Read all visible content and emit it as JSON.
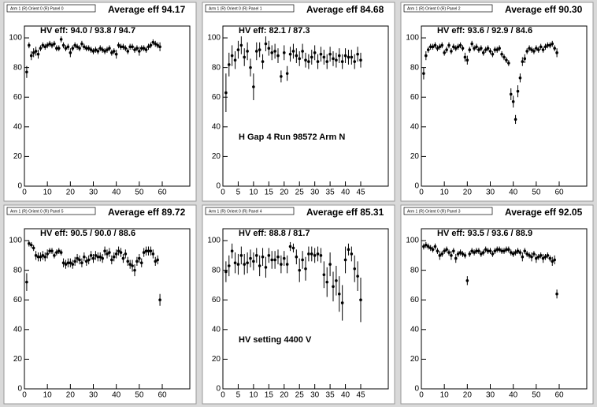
{
  "chart_data": [
    {
      "type": "scatter",
      "label": "Arm 1 (R) Orient 0 (R) Panel 0",
      "title": "Average eff 94.17",
      "hv_text": "HV eff:   94.0 / 93.8 / 94.7",
      "x": [
        1,
        2,
        3,
        4,
        5,
        6,
        7,
        8,
        9,
        10,
        11,
        12,
        13,
        14,
        15,
        16,
        17,
        18,
        19,
        20,
        21,
        22,
        23,
        24,
        25,
        26,
        27,
        28,
        29,
        30,
        31,
        32,
        33,
        34,
        35,
        36,
        37,
        38,
        39,
        40,
        41,
        42,
        43,
        44,
        45,
        46,
        47,
        48,
        49,
        50,
        51,
        52,
        53,
        54,
        55,
        56,
        57,
        58,
        59
      ],
      "values": [
        77,
        95,
        88,
        90,
        91,
        89,
        93,
        95,
        94,
        95,
        96,
        95,
        96,
        93,
        93,
        99,
        95,
        93,
        94,
        90,
        93,
        95,
        94,
        93,
        96,
        94,
        93,
        93,
        92,
        91,
        92,
        91,
        93,
        92,
        91,
        92,
        93,
        90,
        91,
        89,
        95,
        94,
        94,
        93,
        91,
        94,
        94,
        92,
        93,
        91,
        93,
        93,
        92,
        94,
        95,
        97,
        96,
        95,
        94
      ],
      "errors": [
        4,
        2,
        3,
        3,
        3,
        3,
        2,
        2,
        2,
        2,
        2,
        2,
        2,
        2,
        2,
        2,
        2,
        2,
        2,
        3,
        2,
        2,
        2,
        2,
        2,
        2,
        2,
        2,
        2,
        2,
        2,
        2,
        2,
        2,
        2,
        2,
        2,
        2,
        2,
        3,
        2,
        2,
        2,
        2,
        2,
        2,
        2,
        2,
        2,
        3,
        2,
        2,
        2,
        2,
        2,
        2,
        2,
        2,
        3
      ],
      "color": "#000000",
      "xlim": [
        0,
        72
      ],
      "ylim": [
        0,
        108
      ],
      "xticks": [
        0,
        10,
        20,
        30,
        40,
        50,
        60
      ],
      "yticks": [
        0,
        20,
        40,
        60,
        80,
        100
      ]
    },
    {
      "type": "scatter",
      "label": "Arm 1 (R) Orient 0 (R) Panel 1",
      "title": "Average eff 84.68",
      "hv_text": "HV eff:   82.1 / 87.3",
      "annotation": "H Gap 4 Run 98572 Arm N",
      "x": [
        1,
        2,
        3,
        4,
        5,
        6,
        7,
        8,
        9,
        10,
        11,
        12,
        13,
        14,
        15,
        16,
        17,
        18,
        19,
        20,
        21,
        22,
        23,
        24,
        25,
        26,
        27,
        28,
        29,
        30,
        31,
        32,
        33,
        34,
        35,
        36,
        37,
        38,
        39,
        40,
        41,
        42,
        43,
        44,
        45
      ],
      "values": [
        63,
        82,
        88,
        85,
        92,
        95,
        87,
        91,
        80,
        67,
        91,
        92,
        84,
        96,
        93,
        90,
        91,
        88,
        74,
        90,
        76,
        89,
        91,
        88,
        86,
        91,
        85,
        84,
        87,
        90,
        84,
        89,
        87,
        84,
        89,
        86,
        85,
        88,
        84,
        88,
        87,
        87,
        84,
        89,
        85
      ],
      "errors": [
        13,
        8,
        7,
        6,
        6,
        6,
        6,
        6,
        6,
        9,
        6,
        5,
        5,
        5,
        5,
        5,
        5,
        5,
        4,
        5,
        5,
        5,
        5,
        5,
        5,
        5,
        5,
        5,
        5,
        5,
        5,
        5,
        5,
        5,
        5,
        5,
        5,
        5,
        5,
        5,
        5,
        5,
        5,
        5,
        5
      ],
      "color": "#000000",
      "xlim": [
        0,
        54
      ],
      "ylim": [
        0,
        108
      ],
      "xticks": [
        0,
        5,
        10,
        15,
        20,
        25,
        30,
        35,
        40,
        45
      ],
      "yticks": [
        0,
        20,
        40,
        60,
        80,
        100
      ]
    },
    {
      "type": "scatter",
      "label": "Arm 1 (R) Orient 0 (R) Panel 2",
      "title": "Average eff 90.30",
      "hv_text": "HV eff:   93.6 / 92.9 / 84.6",
      "x": [
        1,
        2,
        3,
        4,
        5,
        6,
        7,
        8,
        9,
        10,
        11,
        12,
        13,
        14,
        15,
        16,
        17,
        18,
        19,
        20,
        21,
        22,
        23,
        24,
        25,
        26,
        27,
        28,
        29,
        30,
        31,
        32,
        33,
        34,
        35,
        36,
        37,
        38,
        39,
        40,
        41,
        42,
        43,
        44,
        45,
        46,
        47,
        48,
        49,
        50,
        51,
        52,
        53,
        54,
        55,
        56,
        57,
        58,
        59
      ],
      "values": [
        76,
        88,
        92,
        94,
        94,
        95,
        93,
        94,
        95,
        90,
        92,
        95,
        91,
        94,
        93,
        94,
        95,
        93,
        87,
        85,
        92,
        96,
        93,
        94,
        92,
        93,
        90,
        92,
        93,
        91,
        89,
        92,
        92,
        93,
        89,
        87,
        85,
        83,
        62,
        57,
        45,
        64,
        73,
        84,
        86,
        91,
        93,
        92,
        91,
        93,
        92,
        94,
        92,
        94,
        95,
        95,
        96,
        93,
        90
      ],
      "errors": [
        4,
        3,
        2,
        2,
        2,
        2,
        2,
        2,
        2,
        2,
        2,
        2,
        2,
        2,
        2,
        2,
        2,
        2,
        3,
        3,
        2,
        2,
        2,
        2,
        2,
        2,
        2,
        2,
        2,
        2,
        2,
        2,
        2,
        2,
        2,
        2,
        2,
        2,
        4,
        4,
        3,
        4,
        3,
        3,
        3,
        2,
        2,
        2,
        2,
        2,
        2,
        2,
        2,
        2,
        2,
        2,
        2,
        2,
        3
      ],
      "color": "#000000",
      "xlim": [
        0,
        72
      ],
      "ylim": [
        0,
        108
      ],
      "xticks": [
        0,
        10,
        20,
        30,
        40,
        50,
        60
      ],
      "yticks": [
        0,
        20,
        40,
        60,
        80,
        100
      ]
    },
    {
      "type": "scatter",
      "label": "Arm 1 (R) Orient 0 (R) Panel 5",
      "title": "Average eff 89.72",
      "hv_text": "HV eff:   90.5 / 90.0 / 88.6",
      "x": [
        1,
        2,
        3,
        4,
        5,
        6,
        7,
        8,
        9,
        10,
        11,
        12,
        13,
        14,
        15,
        16,
        17,
        18,
        19,
        20,
        21,
        22,
        23,
        24,
        25,
        26,
        27,
        28,
        29,
        30,
        31,
        32,
        33,
        34,
        35,
        36,
        37,
        38,
        39,
        40,
        41,
        42,
        43,
        44,
        45,
        46,
        47,
        48,
        49,
        50,
        51,
        52,
        53,
        54,
        55,
        56,
        57,
        58,
        59
      ],
      "values": [
        72,
        98,
        97,
        95,
        90,
        89,
        89,
        90,
        89,
        91,
        93,
        93,
        90,
        92,
        93,
        92,
        85,
        84,
        85,
        85,
        84,
        86,
        88,
        87,
        85,
        89,
        86,
        87,
        90,
        88,
        90,
        89,
        89,
        88,
        93,
        91,
        92,
        87,
        89,
        91,
        93,
        92,
        88,
        91,
        86,
        84,
        83,
        80,
        86,
        88,
        85,
        92,
        93,
        93,
        93,
        91,
        86,
        87,
        60
      ],
      "errors": [
        6,
        2,
        2,
        2,
        3,
        3,
        3,
        3,
        3,
        3,
        2,
        2,
        2,
        2,
        2,
        2,
        3,
        3,
        3,
        3,
        3,
        3,
        3,
        3,
        3,
        3,
        3,
        3,
        3,
        3,
        3,
        3,
        3,
        3,
        3,
        3,
        3,
        3,
        3,
        3,
        3,
        3,
        3,
        3,
        3,
        3,
        4,
        4,
        3,
        3,
        3,
        3,
        3,
        3,
        3,
        3,
        3,
        3,
        4
      ],
      "color": "#000000",
      "xlim": [
        0,
        72
      ],
      "ylim": [
        0,
        108
      ],
      "xticks": [
        0,
        10,
        20,
        30,
        40,
        50,
        60
      ],
      "yticks": [
        0,
        20,
        40,
        60,
        80,
        100
      ]
    },
    {
      "type": "scatter",
      "label": "Arm 1 (R) Orient 0 (R) Panel 4",
      "title": "Average eff 85.31",
      "hv_text": "HV eff:   88.8 / 81.7",
      "annotation": "HV setting 4400 V",
      "x": [
        1,
        2,
        3,
        4,
        5,
        6,
        7,
        8,
        9,
        10,
        11,
        12,
        13,
        14,
        15,
        16,
        17,
        18,
        19,
        20,
        21,
        22,
        23,
        24,
        25,
        26,
        27,
        28,
        29,
        30,
        31,
        32,
        33,
        34,
        35,
        36,
        37,
        38,
        39,
        40,
        41,
        42,
        43,
        44,
        45
      ],
      "values": [
        79,
        83,
        93,
        85,
        84,
        90,
        84,
        85,
        88,
        86,
        90,
        83,
        89,
        82,
        90,
        87,
        87,
        89,
        84,
        88,
        84,
        96,
        95,
        89,
        80,
        87,
        81,
        91,
        91,
        90,
        91,
        90,
        77,
        72,
        84,
        69,
        73,
        64,
        58,
        87,
        94,
        91,
        81,
        76,
        60
      ],
      "errors": [
        7,
        7,
        5,
        7,
        7,
        6,
        7,
        7,
        6,
        6,
        5,
        7,
        6,
        7,
        5,
        6,
        6,
        5,
        6,
        5,
        6,
        3,
        3,
        5,
        8,
        6,
        8,
        5,
        5,
        5,
        5,
        5,
        9,
        10,
        8,
        10,
        10,
        12,
        12,
        9,
        4,
        5,
        9,
        10,
        15
      ],
      "color": "#000000",
      "xlim": [
        0,
        54
      ],
      "ylim": [
        0,
        108
      ],
      "xticks": [
        0,
        5,
        10,
        15,
        20,
        25,
        30,
        35,
        40,
        45
      ],
      "yticks": [
        0,
        20,
        40,
        60,
        80,
        100
      ]
    },
    {
      "type": "scatter",
      "label": "Arm 1 (R) Orient 0 (R) Panel 3",
      "title": "Average eff 92.05",
      "hv_text": "HV eff:   93.5 / 93.6 / 88.9",
      "x": [
        1,
        2,
        3,
        4,
        5,
        6,
        7,
        8,
        9,
        10,
        11,
        12,
        13,
        14,
        15,
        16,
        17,
        18,
        19,
        20,
        21,
        22,
        23,
        24,
        25,
        26,
        27,
        28,
        29,
        30,
        31,
        32,
        33,
        34,
        35,
        36,
        37,
        38,
        39,
        40,
        41,
        42,
        43,
        44,
        45,
        46,
        47,
        48,
        49,
        50,
        51,
        52,
        53,
        54,
        55,
        56,
        57,
        58,
        59
      ],
      "values": [
        96,
        97,
        96,
        95,
        94,
        96,
        93,
        90,
        91,
        93,
        94,
        92,
        90,
        93,
        88,
        91,
        92,
        91,
        90,
        73,
        91,
        93,
        92,
        93,
        93,
        91,
        92,
        94,
        93,
        93,
        91,
        93,
        94,
        94,
        93,
        93,
        94,
        94,
        92,
        91,
        92,
        93,
        92,
        89,
        93,
        91,
        90,
        89,
        91,
        88,
        89,
        90,
        88,
        89,
        90,
        88,
        86,
        87,
        64
      ],
      "errors": [
        2,
        2,
        2,
        2,
        2,
        2,
        2,
        3,
        2,
        2,
        2,
        2,
        3,
        2,
        3,
        2,
        2,
        2,
        2,
        3,
        2,
        2,
        2,
        2,
        2,
        2,
        2,
        2,
        2,
        2,
        2,
        2,
        2,
        2,
        2,
        2,
        2,
        2,
        2,
        2,
        2,
        2,
        2,
        3,
        2,
        2,
        2,
        3,
        2,
        3,
        2,
        2,
        3,
        2,
        2,
        2,
        3,
        3,
        3
      ],
      "color": "#000000",
      "xlim": [
        0,
        72
      ],
      "ylim": [
        0,
        108
      ],
      "xticks": [
        0,
        10,
        20,
        30,
        40,
        50,
        60
      ],
      "yticks": [
        0,
        20,
        40,
        60,
        80,
        100
      ]
    }
  ]
}
